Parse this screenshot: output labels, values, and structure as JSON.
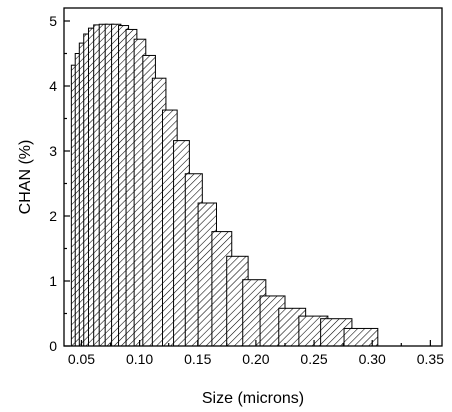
{
  "chart_data": {
    "type": "bar",
    "xlabel": "Size (microns)",
    "ylabel": "CHAN (%)",
    "xlim": [
      0.035,
      0.36
    ],
    "ylim": [
      0,
      5.2
    ],
    "xticks": [
      0.05,
      0.1,
      0.15,
      0.2,
      0.25,
      0.3,
      0.35
    ],
    "xtick_labels": [
      "0.05",
      "0.10",
      "0.15",
      "0.20",
      "0.25",
      "0.30",
      "0.35"
    ],
    "yticks": [
      0,
      1,
      2,
      3,
      4,
      5
    ],
    "ytick_labels": [
      "0",
      "1",
      "2",
      "3",
      "4",
      "5"
    ],
    "bar_fill": "hatched (diagonal lines)",
    "bar_stroke": "#000000",
    "grid": false,
    "bars": [
      {
        "x": 0.0435,
        "value": 4.32
      },
      {
        "x": 0.047,
        "value": 4.5
      },
      {
        "x": 0.0507,
        "value": 4.66
      },
      {
        "x": 0.0547,
        "value": 4.8
      },
      {
        "x": 0.059,
        "value": 4.89
      },
      {
        "x": 0.0637,
        "value": 4.94
      },
      {
        "x": 0.0687,
        "value": 4.95
      },
      {
        "x": 0.0741,
        "value": 4.95
      },
      {
        "x": 0.0799,
        "value": 4.95
      },
      {
        "x": 0.0862,
        "value": 4.93
      },
      {
        "x": 0.093,
        "value": 4.87
      },
      {
        "x": 0.1003,
        "value": 4.72
      },
      {
        "x": 0.1082,
        "value": 4.47
      },
      {
        "x": 0.1168,
        "value": 4.12
      },
      {
        "x": 0.126,
        "value": 3.63
      },
      {
        "x": 0.136,
        "value": 3.16
      },
      {
        "x": 0.1466,
        "value": 2.65
      },
      {
        "x": 0.1582,
        "value": 2.2
      },
      {
        "x": 0.1707,
        "value": 1.76
      },
      {
        "x": 0.1841,
        "value": 1.38
      },
      {
        "x": 0.1986,
        "value": 1.02
      },
      {
        "x": 0.2143,
        "value": 0.77
      },
      {
        "x": 0.2312,
        "value": 0.58
      },
      {
        "x": 0.2494,
        "value": 0.46
      },
      {
        "x": 0.2691,
        "value": 0.42
      },
      {
        "x": 0.2903,
        "value": 0.27
      }
    ]
  }
}
